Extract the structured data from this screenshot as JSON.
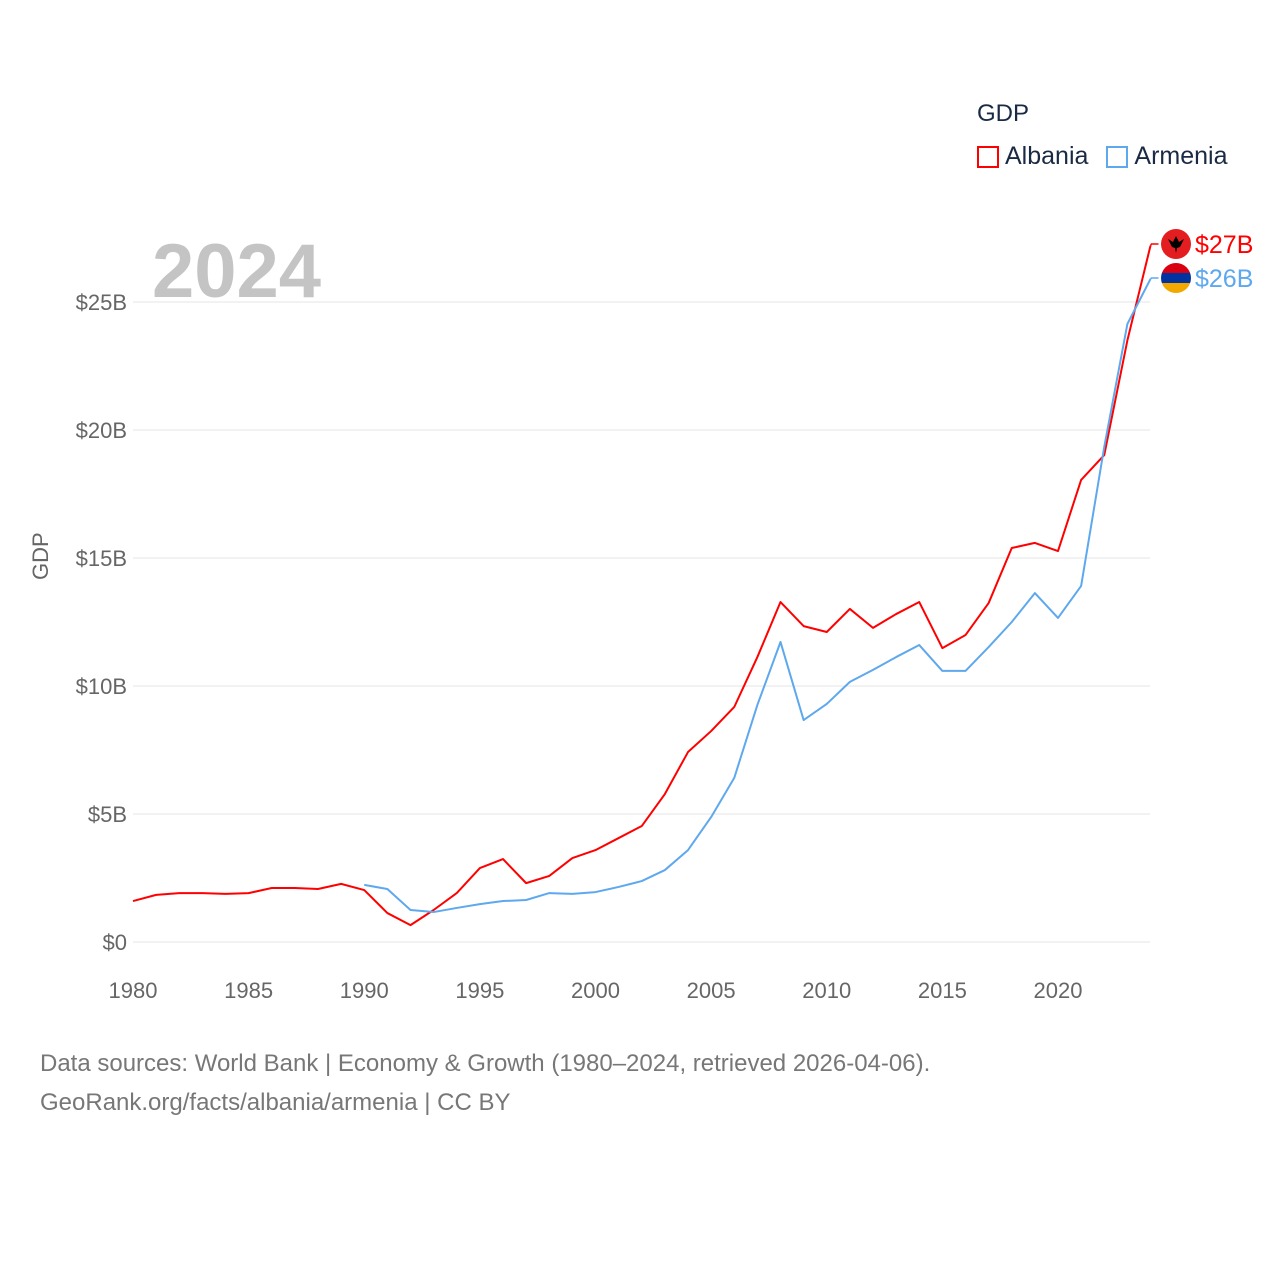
{
  "chart_data": {
    "type": "line",
    "title": "GDP",
    "ylabel": "GDP",
    "xlabel": "",
    "year_label": "2024",
    "xlim": [
      1980,
      2024
    ],
    "ylim": [
      0,
      25
    ],
    "x_ticks": [
      1980,
      1985,
      1990,
      1995,
      2000,
      2005,
      2010,
      2015,
      2020
    ],
    "y_ticks": [
      0,
      5,
      10,
      15,
      20,
      25
    ],
    "y_tick_labels": [
      "$0",
      "$5B",
      "$10B",
      "$15B",
      "$20B",
      "$25B"
    ],
    "grid": true,
    "legend_position": "top-right",
    "series": [
      {
        "name": "Albania",
        "color": "#ff0000",
        "end_label": "$27B",
        "flag": "albania-flag",
        "x": [
          1980,
          1981,
          1982,
          1983,
          1984,
          1985,
          1986,
          1987,
          1988,
          1989,
          1990,
          1991,
          1992,
          1993,
          1994,
          1995,
          1996,
          1997,
          1998,
          1999,
          2000,
          2001,
          2002,
          2003,
          2004,
          2005,
          2006,
          2007,
          2008,
          2009,
          2010,
          2011,
          2012,
          2013,
          2014,
          2015,
          2016,
          2017,
          2018,
          2019,
          2020,
          2021,
          2022,
          2023,
          2024
        ],
        "values": [
          1.6,
          1.84,
          1.91,
          1.91,
          1.88,
          1.91,
          2.11,
          2.11,
          2.07,
          2.27,
          2.03,
          1.13,
          0.66,
          1.25,
          1.91,
          2.89,
          3.24,
          2.3,
          2.58,
          3.28,
          3.59,
          4.06,
          4.53,
          5.78,
          7.42,
          8.24,
          9.18,
          11.13,
          13.28,
          12.34,
          12.11,
          13.01,
          12.27,
          12.81,
          13.28,
          11.48,
          11.99,
          13.24,
          15.39,
          15.59,
          15.27,
          18.05,
          19.02,
          23.5,
          27.2
        ]
      },
      {
        "name": "Armenia",
        "color": "#5ea8ee",
        "end_label": "$26B",
        "flag": "armenia-flag",
        "x": [
          1990,
          1991,
          1992,
          1993,
          1994,
          1995,
          1996,
          1997,
          1998,
          1999,
          2000,
          2001,
          2002,
          2003,
          2004,
          2005,
          2006,
          2007,
          2008,
          2009,
          2010,
          2011,
          2012,
          2013,
          2014,
          2015,
          2016,
          2017,
          2018,
          2019,
          2020,
          2021,
          2022,
          2023,
          2024
        ],
        "values": [
          2.23,
          2.07,
          1.25,
          1.17,
          1.33,
          1.48,
          1.6,
          1.64,
          1.91,
          1.88,
          1.95,
          2.15,
          2.38,
          2.81,
          3.59,
          4.88,
          6.41,
          9.26,
          11.72,
          8.67,
          9.3,
          10.16,
          10.63,
          11.13,
          11.6,
          10.59,
          10.59,
          11.52,
          12.5,
          13.63,
          12.66,
          13.91,
          19.34,
          24.14,
          25.9
        ]
      }
    ]
  },
  "footer": {
    "line1": "Data sources: World Bank | Economy & Growth (1980–2024, retrieved 2026-04-06).",
    "line2": "GeoRank.org/facts/albania/armenia | CC BY"
  }
}
